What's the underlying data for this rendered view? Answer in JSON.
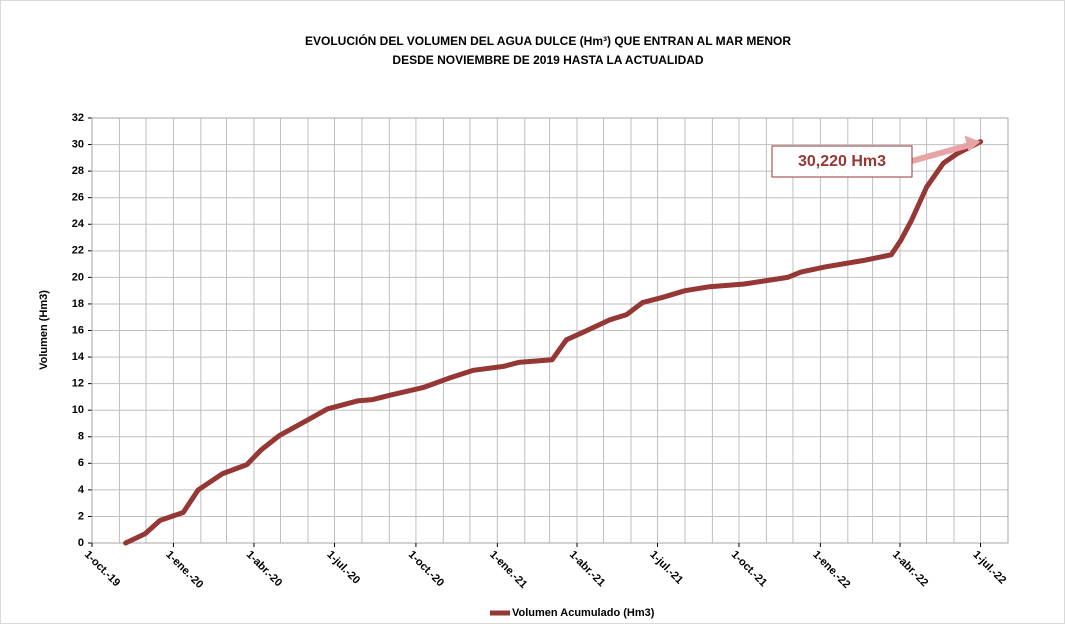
{
  "chart_data": {
    "type": "line",
    "title": "EVOLUCIÓN DEL VOLUMEN DEL AGUA DULCE (Hm³) QUE ENTRAN AL MAR MENOR",
    "subtitle": "DESDE NOVIEMBRE DE 2019 HASTA LA ACTUALIDAD",
    "y_label": "Volumen (Hm3)",
    "annotation": "30,220 Hm3",
    "x": [
      "2019-11-08",
      "2019-11-30",
      "2019-12-17",
      "2020-01-12",
      "2020-01-29",
      "2020-02-25",
      "2020-03-24",
      "2020-04-09",
      "2020-04-30",
      "2020-05-30",
      "2020-06-23",
      "2020-07-27",
      "2020-08-13",
      "2020-08-31",
      "2020-10-09",
      "2020-11-07",
      "2020-12-05",
      "2021-01-08",
      "2021-01-25",
      "2021-03-04",
      "2021-03-20",
      "2021-04-09",
      "2021-05-08",
      "2021-05-27",
      "2021-06-14",
      "2021-07-07",
      "2021-08-01",
      "2021-08-29",
      "2021-10-07",
      "2021-11-25",
      "2021-12-10",
      "2022-01-07",
      "2022-02-21",
      "2022-03-22",
      "2022-04-02",
      "2022-04-14",
      "2022-05-01",
      "2022-05-20",
      "2022-06-04",
      "2022-07-01"
    ],
    "series": [
      {
        "name": "Volumen Acumulado (Hm3)",
        "color": "#953735",
        "values": [
          0,
          0.7,
          1.7,
          2.3,
          4.0,
          5.2,
          5.9,
          7.0,
          8.1,
          9.2,
          10.1,
          10.7,
          10.8,
          11.1,
          11.7,
          12.4,
          13.0,
          13.3,
          13.6,
          13.8,
          15.3,
          15.9,
          16.8,
          17.2,
          18.1,
          18.5,
          19.0,
          19.3,
          19.5,
          20.0,
          20.4,
          20.8,
          21.3,
          21.7,
          22.8,
          24.3,
          26.8,
          28.6,
          29.3,
          30.22
        ]
      }
    ],
    "xlim": [
      "2019-10-01",
      "2022-08-01"
    ],
    "xticks": [
      {
        "value": "2019-10-01",
        "label": "1-oct.-19"
      },
      {
        "value": "2020-01-01",
        "label": "1-ene.-20"
      },
      {
        "value": "2020-04-01",
        "label": "1-abr.-20"
      },
      {
        "value": "2020-07-01",
        "label": "1-jul.-20"
      },
      {
        "value": "2020-10-01",
        "label": "1-oct.-20"
      },
      {
        "value": "2021-01-01",
        "label": "1-ene.-21"
      },
      {
        "value": "2021-04-01",
        "label": "1-abr.-21"
      },
      {
        "value": "2021-07-01",
        "label": "1-jul.-21"
      },
      {
        "value": "2021-10-01",
        "label": "1-oct.-21"
      },
      {
        "value": "2022-01-01",
        "label": "1-ene.-22"
      },
      {
        "value": "2022-04-01",
        "label": "1-abr.-22"
      },
      {
        "value": "2022-07-01",
        "label": "1-jul.-22"
      }
    ],
    "ylim": [
      0,
      32
    ],
    "yticks": [
      0,
      2,
      4,
      6,
      8,
      10,
      12,
      14,
      16,
      18,
      20,
      22,
      24,
      26,
      28,
      30,
      32
    ],
    "grid": true,
    "legend": "bottom"
  }
}
